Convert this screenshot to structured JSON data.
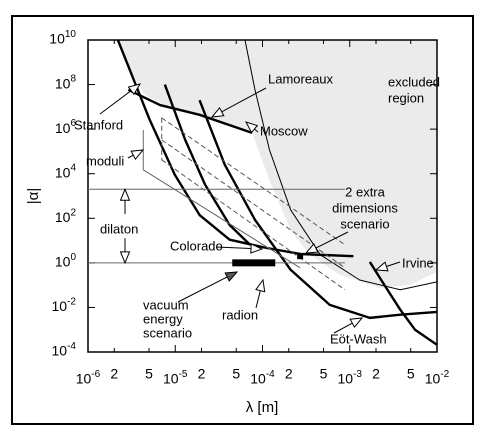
{
  "chart_data": {
    "type": "line",
    "xscale": "log",
    "yscale": "log",
    "xlabel": "λ  [m]",
    "ylabel": "|α|",
    "xlim": [
      1e-06,
      0.01
    ],
    "ylim": [
      0.0001,
      10000000000.0
    ],
    "xticks": [
      {
        "value": 1e-06,
        "label": "10-6"
      },
      {
        "value": 2e-06,
        "label": "2"
      },
      {
        "value": 5e-06,
        "label": "5"
      },
      {
        "value": 1e-05,
        "label": "10-5"
      },
      {
        "value": 2e-05,
        "label": "2"
      },
      {
        "value": 5e-05,
        "label": "5"
      },
      {
        "value": 0.0001,
        "label": "10-4"
      },
      {
        "value": 0.0002,
        "label": "2"
      },
      {
        "value": 0.0005,
        "label": "5"
      },
      {
        "value": 0.001,
        "label": "10-3"
      },
      {
        "value": 0.002,
        "label": "2"
      },
      {
        "value": 0.005,
        "label": "5"
      },
      {
        "value": 0.01,
        "label": "10-2"
      }
    ],
    "yticks": [
      {
        "value": 0.0001,
        "label": "10-4"
      },
      {
        "value": 0.01,
        "label": "10-2"
      },
      {
        "value": 1,
        "label": "100"
      },
      {
        "value": 100,
        "label": "102"
      },
      {
        "value": 10000.0,
        "label": "104"
      },
      {
        "value": 1000000.0,
        "label": "106"
      },
      {
        "value": 100000000.0,
        "label": "108"
      },
      {
        "value": 10000000000.0,
        "label": "1010"
      }
    ],
    "region": {
      "color": "#ebebeb",
      "x": [
        2.2e-06,
        3e-06,
        4.5e-06,
        8.7e-06,
        2.5e-05,
        7.6e-05,
        0.00012,
        0.00021,
        0.00035,
        0.00077,
        0.0022,
        0.0049,
        0.01,
        0.01
      ],
      "values": [
        10000000000.0,
        450000000.0,
        34000000.0,
        8900000.0,
        3200000.0,
        680000.0,
        5200.0,
        30,
        2.3,
        0.29,
        0.076,
        0.1,
        0.4,
        10000000000.0
      ]
    },
    "series": [
      {
        "name": "Stanford",
        "color": "#000",
        "width": "thick",
        "x": [
          2.2e-06,
          5.1e-06,
          9.9e-06,
          1.9e-05,
          4.2e-05,
          0.00011
        ],
        "values": [
          10000000000.0,
          2600000.0,
          8900.0,
          140,
          11,
          4.7
        ]
      },
      {
        "name": "Colorado",
        "color": "#000",
        "width": "thick",
        "x": [
          0.00011,
          0.00027,
          0.0011
        ],
        "values": [
          4.7,
          2.5,
          2.0
        ]
      },
      {
        "name": "Lamoreaux",
        "color": "#000",
        "width": "thick",
        "x": [
          2.9e-06,
          6.7e-06,
          1.9e-05,
          7.6e-05
        ],
        "values": [
          58000000.0,
          12000000.0,
          4400000.0,
          680000.0
        ]
      },
      {
        "color": "#000",
        "width": "thick",
        "x": [
          7.6e-06,
          1.3e-05,
          2.2e-05,
          4.2e-05,
          7.2e-05
        ],
        "values": [
          100000000.0,
          330000.0,
          3200.0,
          50,
          6.5
        ]
      },
      {
        "name": "Eöt-Wash",
        "color": "#000",
        "width": "thick",
        "x": [
          1.9e-05,
          3.7e-05,
          8.2e-05,
          0.00021,
          0.00059,
          0.0017,
          0.0038,
          0.01
        ],
        "values": [
          20000000.0,
          25000.0,
          85,
          0.49,
          0.013,
          0.0034,
          0.0047,
          0.0063
        ]
      },
      {
        "name": "Moscow",
        "color": "#000",
        "width": "thin",
        "x": [
          6.3e-05,
          8.2e-05,
          0.00012,
          0.00021,
          0.00046,
          0.0013,
          0.0038,
          0.01
        ],
        "values": [
          10000000000.0,
          58000000.0,
          120000.0,
          240,
          2.3,
          0.17,
          0.062,
          0.14
        ]
      },
      {
        "name": "Irvine",
        "color": "#000",
        "width": "thick",
        "x": [
          0.0017,
          0.0025,
          0.0038,
          0.0056,
          0.01
        ],
        "values": [
          1.1,
          0.1,
          0.0078,
          0.001,
          0.00021
        ]
      },
      {
        "color": "#555",
        "width": "thin",
        "dash": true,
        "x": [
          7e-06,
          0.00088
        ],
        "values": [
          3200000.0,
          6.5
        ]
      },
      {
        "color": "#555",
        "width": "thin",
        "dash": true,
        "x": [
          7e-06,
          0.00088
        ],
        "values": [
          330000.0,
          0.6
        ]
      },
      {
        "color": "#555",
        "width": "thin",
        "dash": true,
        "x": [
          7e-06,
          0.00088
        ],
        "values": [
          42000.0,
          0.062
        ]
      },
      {
        "color": "#555",
        "width": "thin",
        "dash": true,
        "x": [
          7e-06,
          7e-06
        ],
        "values": [
          3200000.0,
          42000.0
        ]
      },
      {
        "color": "#666",
        "width": "thin",
        "x": [
          4.3e-06,
          4.3e-06,
          0.00027
        ],
        "values": [
          910000.0,
          15000.0,
          0.6
        ]
      },
      {
        "color": "#666",
        "width": "thin",
        "x": [
          1e-06,
          0.00088
        ],
        "values": [
          2000.0,
          2000.0
        ]
      },
      {
        "color": "#666",
        "width": "thin",
        "x": [
          1e-06,
          0.00088
        ],
        "values": [
          1,
          1
        ]
      }
    ],
    "radion": {
      "x": [
        4.5e-05,
        0.00014
      ],
      "values": [
        1,
        1
      ],
      "color": "#000"
    },
    "point": {
      "x": 0.00027,
      "value": 2.0,
      "color": "#000"
    },
    "annotations": [
      {
        "text": [
          "excluded",
          "region"
        ]
      },
      {
        "text": [
          "moduli"
        ]
      },
      {
        "text": [
          "2 extra",
          "dimensions",
          "scenario"
        ]
      },
      {
        "text": [
          "dilaton"
        ]
      },
      {
        "text": [
          "vacuum",
          "energy",
          "scenario"
        ]
      },
      {
        "text": [
          "radion"
        ]
      }
    ]
  }
}
